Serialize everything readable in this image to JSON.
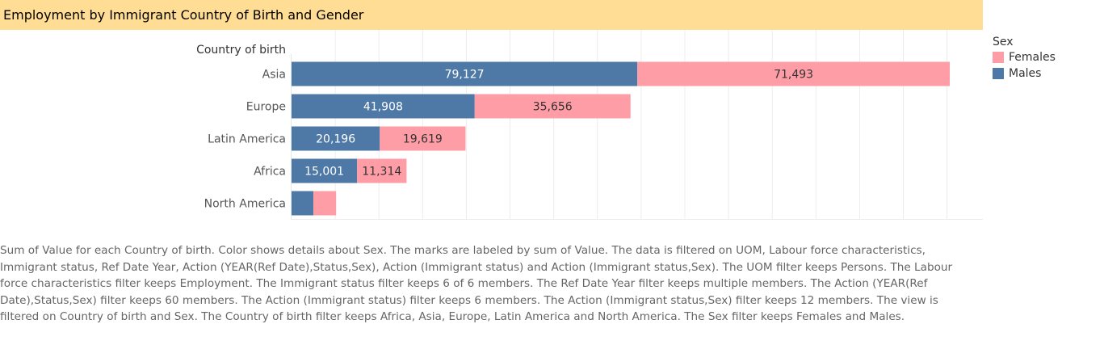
{
  "title": "Employment by Immigrant Country of Birth and Gender",
  "chart_data": {
    "type": "bar",
    "orientation": "horizontal",
    "stacked": true,
    "yaxis_label": "Country of birth",
    "categories": [
      "Asia",
      "Europe",
      "Latin America",
      "Africa",
      "North America"
    ],
    "series": [
      {
        "name": "Males",
        "color": "#4e79a7",
        "values": [
          79127,
          41908,
          20196,
          15001,
          5000
        ],
        "labels": [
          "79,127",
          "41,908",
          "20,196",
          "15,001",
          ""
        ]
      },
      {
        "name": "Females",
        "color": "#ff9da7",
        "values": [
          71493,
          35656,
          19619,
          11314,
          5200
        ],
        "labels": [
          "71,493",
          "35,656",
          "19,619",
          "11,314",
          ""
        ]
      }
    ],
    "xlim": [
      0,
      155000
    ],
    "grid": true,
    "legend_position": "right"
  },
  "legend": {
    "title": "Sex",
    "items": [
      {
        "label": "Females",
        "color": "#ff9da7"
      },
      {
        "label": "Males",
        "color": "#4e79a7"
      }
    ]
  },
  "caption": "Sum of Value for each Country of birth.  Color shows details about Sex.  The marks are labeled by sum of Value. The data is filtered on UOM, Labour force characteristics, Immigrant status, Ref Date Year, Action (YEAR(Ref Date),Status,Sex), Action (Immigrant status) and Action (Immigrant status,Sex). The UOM filter keeps Persons. The Labour force characteristics filter keeps Employment. The Immigrant status filter keeps 6 of 6 members. The Ref Date Year filter keeps multiple members. The Action (YEAR(Ref Date),Status,Sex) filter keeps 60 members. The Action (Immigrant status) filter keeps 6 members. The Action (Immigrant status,Sex) filter keeps 12 members. The view is filtered on Country of birth and Sex. The Country of birth filter keeps Africa, Asia, Europe, Latin America and North America. The Sex filter keeps Females and Males."
}
